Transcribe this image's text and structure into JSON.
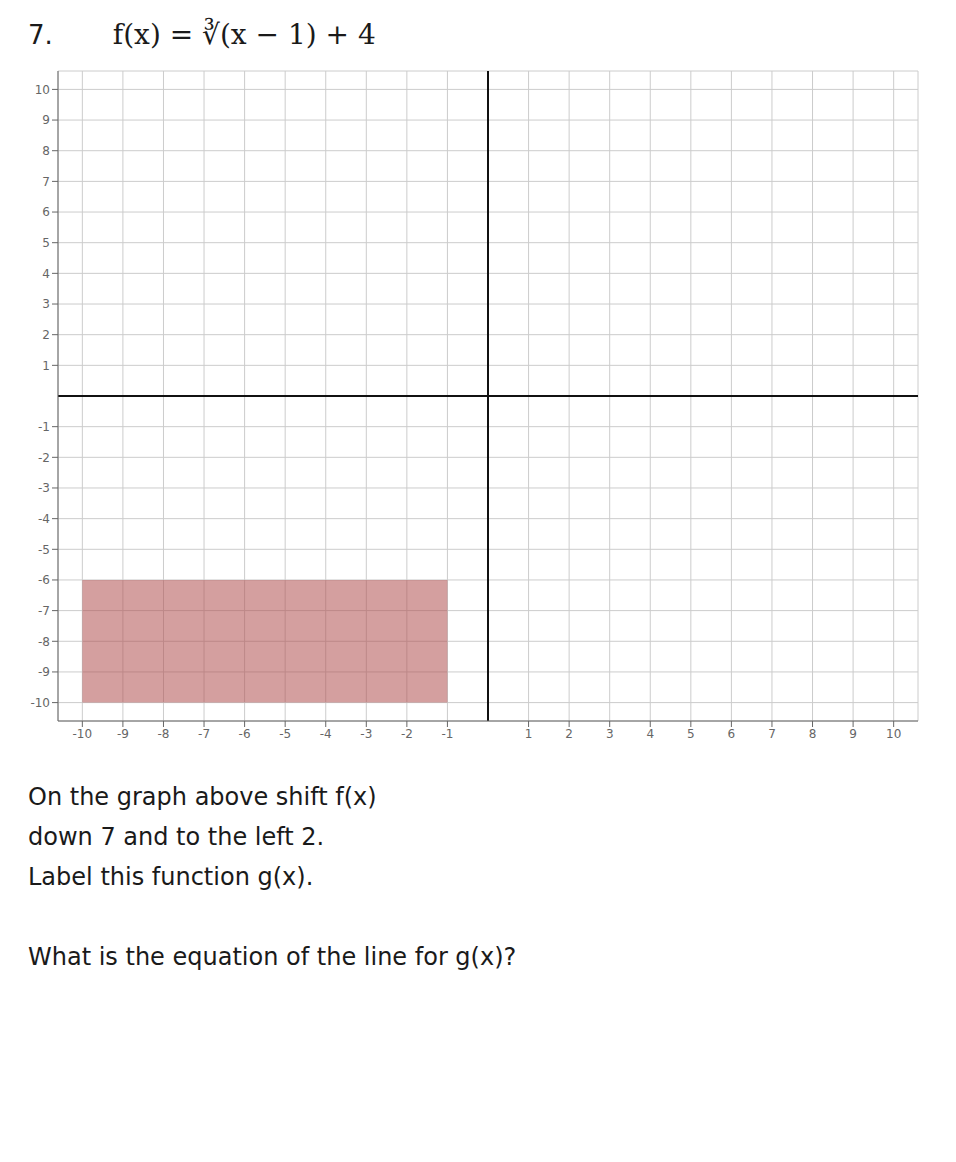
{
  "chart_data": {
    "type": "region",
    "title": "7.",
    "subtitle": "f(x) = ∛(x − 1) + 4",
    "xlim": [
      -10.6,
      10.6
    ],
    "ylim": [
      -10.6,
      10.6
    ],
    "xticks": [
      -10,
      -9,
      -8,
      -7,
      -6,
      -5,
      -4,
      -3,
      -2,
      -1,
      1,
      2,
      3,
      4,
      5,
      6,
      7,
      8,
      9,
      10
    ],
    "yticks": [
      -10,
      -9,
      -8,
      -7,
      -6,
      -5,
      -4,
      -3,
      -2,
      -1,
      1,
      2,
      3,
      4,
      5,
      6,
      7,
      8,
      9,
      10
    ],
    "grid": true,
    "regions": [
      {
        "x": [
          -10,
          -1
        ],
        "y": [
          -10,
          -6
        ],
        "color": "#b05050"
      }
    ],
    "annotations": [
      "On the graph above shift f(x)",
      "down 7 and to the left 2.",
      "Label this function g(x).",
      "What is the equation of the line for g(x)?"
    ]
  }
}
